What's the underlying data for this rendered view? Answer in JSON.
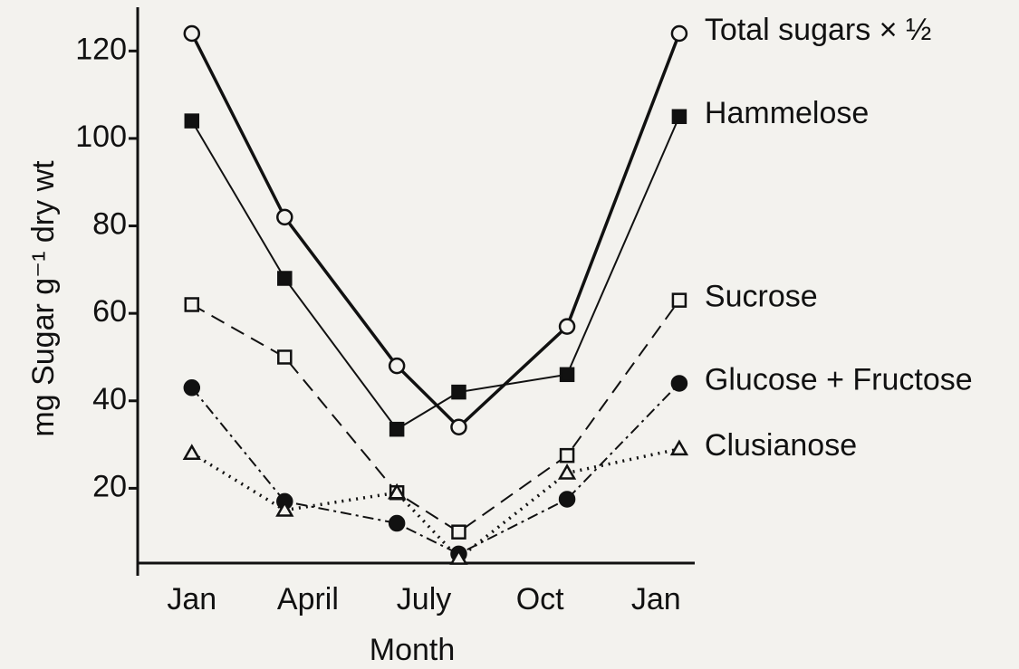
{
  "chart_data": {
    "type": "line",
    "x_label": "Month",
    "y_label": "mg Sugar g⁻¹ dry wt",
    "x": [
      0,
      2.4,
      5.3,
      6.9,
      9.7,
      12.6
    ],
    "xlim": [
      -1.4,
      13
    ],
    "xticks": [
      {
        "value": 0,
        "label": "Jan"
      },
      {
        "value": 3,
        "label": "April"
      },
      {
        "value": 6,
        "label": "July"
      },
      {
        "value": 9,
        "label": "Oct"
      },
      {
        "value": 12,
        "label": "Jan"
      }
    ],
    "ylim": [
      0,
      130
    ],
    "yticks": [
      20,
      40,
      60,
      80,
      100,
      120
    ],
    "series": [
      {
        "name": "Total sugars × ½",
        "color": "#111111",
        "line": "solid-thick",
        "marker": "open-circle",
        "values": [
          124,
          82,
          48,
          34,
          57,
          124
        ]
      },
      {
        "name": "Hammelose",
        "color": "#111111",
        "line": "solid",
        "marker": "filled-square",
        "values": [
          104,
          68,
          33.5,
          42,
          46,
          105
        ]
      },
      {
        "name": "Sucrose",
        "color": "#111111",
        "line": "dashed",
        "marker": "open-square",
        "values": [
          62,
          50,
          19,
          10,
          27.5,
          63
        ]
      },
      {
        "name": "Glucose + Fructose",
        "color": "#111111",
        "line": "dash-dot",
        "marker": "filled-circle",
        "values": [
          43,
          17,
          12,
          5,
          17.5,
          44
        ]
      },
      {
        "name": "Clusianose",
        "color": "#111111",
        "line": "dotted",
        "marker": "open-triangle",
        "values": [
          28,
          15,
          19,
          4,
          23.5,
          29
        ]
      }
    ]
  }
}
